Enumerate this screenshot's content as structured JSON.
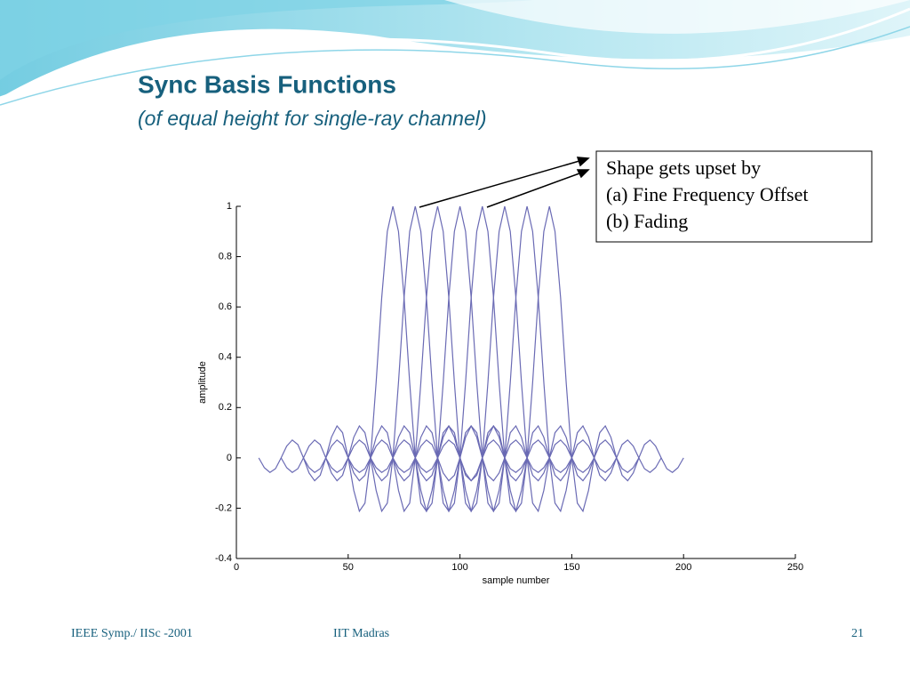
{
  "slide": {
    "title": "Sync Basis Functions",
    "subtitle": "(of equal height for single-ray channel)",
    "callout": [
      "Shape gets upset by",
      "(a) Fine Frequency Offset",
      "(b) Fading"
    ],
    "footer": {
      "left": "IEEE Symp./ IISc -2001",
      "center": "IIT Madras",
      "page": "21"
    }
  },
  "chart_data": {
    "type": "line",
    "xlabel": "sample number",
    "ylabel": "amplitude",
    "xlim": [
      0,
      250
    ],
    "xticks": [
      0,
      50,
      100,
      150,
      200,
      250
    ],
    "ylim": [
      -0.4,
      1
    ],
    "yticks": [
      -0.4,
      -0.2,
      0,
      0.2,
      0.4,
      0.6,
      0.8,
      1
    ],
    "x": [
      10,
      12.5,
      15,
      17.5,
      20,
      22.5,
      25,
      27.5,
      30,
      32.5,
      35,
      37.5,
      40,
      42.5,
      45,
      47.5,
      50,
      52.5,
      55,
      57.5,
      60,
      62.5,
      65,
      67.5,
      70,
      72.5,
      75,
      77.5,
      80,
      82.5,
      85,
      87.5,
      90,
      92.5,
      95,
      97.5,
      100,
      102.5,
      105,
      107.5,
      110,
      112.5,
      115,
      117.5,
      120,
      122.5,
      125,
      127.5,
      130,
      132.5,
      135,
      137.5,
      140,
      142.5,
      145,
      147.5,
      150,
      152.5,
      155,
      157.5,
      160,
      162.5,
      165,
      167.5,
      170,
      172.5,
      175,
      177.5,
      180,
      182.5,
      185,
      187.5,
      190,
      192.5,
      195,
      197.5,
      200
    ],
    "series": [
      {
        "color": "#6a6ab4",
        "values": [
          0,
          -0.039,
          -0.058,
          -0.043,
          0,
          0.047,
          0.071,
          0.053,
          0,
          -0.06,
          -0.091,
          -0.069,
          0,
          0.082,
          0.127,
          0.1,
          0,
          -0.129,
          -0.212,
          -0.18,
          0,
          0.3,
          0.637,
          0.9,
          1,
          0.9,
          0.637,
          0.3,
          0,
          -0.18,
          -0.212,
          -0.129,
          0,
          0.1,
          0.127,
          0.082,
          0,
          -0.069,
          -0.091,
          -0.06,
          0,
          0.053,
          0.071,
          0.047,
          0,
          -0.043,
          -0.058,
          -0.039,
          0,
          null,
          null,
          null,
          null,
          null,
          null,
          null,
          null,
          null,
          null,
          null,
          null,
          null,
          null,
          null,
          null,
          null,
          null,
          null,
          null,
          null,
          null,
          null,
          null,
          null,
          null,
          null,
          null
        ]
      },
      {
        "color": "#6a6ab4",
        "values": [
          null,
          null,
          null,
          null,
          0,
          -0.039,
          -0.058,
          -0.043,
          0,
          0.047,
          0.071,
          0.053,
          0,
          -0.06,
          -0.091,
          -0.069,
          0,
          0.082,
          0.127,
          0.1,
          0,
          -0.129,
          -0.212,
          -0.18,
          0,
          0.3,
          0.637,
          0.9,
          1,
          0.9,
          0.637,
          0.3,
          0,
          -0.18,
          -0.212,
          -0.129,
          0,
          0.1,
          0.127,
          0.082,
          0,
          -0.069,
          -0.091,
          -0.06,
          0,
          0.053,
          0.071,
          0.047,
          0,
          -0.043,
          -0.058,
          -0.039,
          0,
          null,
          null,
          null,
          null,
          null,
          null,
          null,
          null,
          null,
          null,
          null,
          null,
          null,
          null,
          null,
          null,
          null,
          null,
          null,
          null,
          null,
          null,
          null,
          null
        ]
      },
      {
        "color": "#6a6ab4",
        "values": [
          null,
          null,
          null,
          null,
          null,
          null,
          null,
          null,
          0,
          -0.039,
          -0.058,
          -0.043,
          0,
          0.047,
          0.071,
          0.053,
          0,
          -0.06,
          -0.091,
          -0.069,
          0,
          0.082,
          0.127,
          0.1,
          0,
          -0.129,
          -0.212,
          -0.18,
          0,
          0.3,
          0.637,
          0.9,
          1,
          0.9,
          0.637,
          0.3,
          0,
          -0.18,
          -0.212,
          -0.129,
          0,
          0.1,
          0.127,
          0.082,
          0,
          -0.069,
          -0.091,
          -0.06,
          0,
          0.053,
          0.071,
          0.047,
          0,
          -0.043,
          -0.058,
          -0.039,
          0,
          null,
          null,
          null,
          null,
          null,
          null,
          null,
          null,
          null,
          null,
          null,
          null,
          null,
          null,
          null,
          null,
          null,
          null,
          null,
          null
        ]
      },
      {
        "color": "#6a6ab4",
        "values": [
          null,
          null,
          null,
          null,
          null,
          null,
          null,
          null,
          null,
          null,
          null,
          null,
          0,
          -0.039,
          -0.058,
          -0.043,
          0,
          0.047,
          0.071,
          0.053,
          0,
          -0.06,
          -0.091,
          -0.069,
          0,
          0.082,
          0.127,
          0.1,
          0,
          -0.129,
          -0.212,
          -0.18,
          0,
          0.3,
          0.637,
          0.9,
          1,
          0.9,
          0.637,
          0.3,
          0,
          -0.18,
          -0.212,
          -0.129,
          0,
          0.1,
          0.127,
          0.082,
          0,
          -0.069,
          -0.091,
          -0.06,
          0,
          0.053,
          0.071,
          0.047,
          0,
          -0.043,
          -0.058,
          -0.039,
          0,
          null,
          null,
          null,
          null,
          null,
          null,
          null,
          null,
          null,
          null,
          null,
          null,
          null,
          null,
          null,
          null
        ]
      },
      {
        "color": "#6a6ab4",
        "values": [
          null,
          null,
          null,
          null,
          null,
          null,
          null,
          null,
          null,
          null,
          null,
          null,
          null,
          null,
          null,
          null,
          0,
          -0.039,
          -0.058,
          -0.043,
          0,
          0.047,
          0.071,
          0.053,
          0,
          -0.06,
          -0.091,
          -0.069,
          0,
          0.082,
          0.127,
          0.1,
          0,
          -0.129,
          -0.212,
          -0.18,
          0,
          0.3,
          0.637,
          0.9,
          1,
          0.9,
          0.637,
          0.3,
          0,
          -0.18,
          -0.212,
          -0.129,
          0,
          0.1,
          0.127,
          0.082,
          0,
          -0.069,
          -0.091,
          -0.06,
          0,
          0.053,
          0.071,
          0.047,
          0,
          -0.043,
          -0.058,
          -0.039,
          0,
          null,
          null,
          null,
          null,
          null,
          null,
          null,
          null,
          null,
          null,
          null,
          null
        ]
      },
      {
        "color": "#6a6ab4",
        "values": [
          null,
          null,
          null,
          null,
          null,
          null,
          null,
          null,
          null,
          null,
          null,
          null,
          null,
          null,
          null,
          null,
          null,
          null,
          null,
          null,
          0,
          -0.039,
          -0.058,
          -0.043,
          0,
          0.047,
          0.071,
          0.053,
          0,
          -0.06,
          -0.091,
          -0.069,
          0,
          0.082,
          0.127,
          0.1,
          0,
          -0.129,
          -0.212,
          -0.18,
          0,
          0.3,
          0.637,
          0.9,
          1,
          0.9,
          0.637,
          0.3,
          0,
          -0.18,
          -0.212,
          -0.129,
          0,
          0.1,
          0.127,
          0.082,
          0,
          -0.069,
          -0.091,
          -0.06,
          0,
          0.053,
          0.071,
          0.047,
          0,
          -0.043,
          -0.058,
          -0.039,
          0,
          null,
          null,
          null,
          null,
          null,
          null,
          null,
          null
        ]
      },
      {
        "color": "#6a6ab4",
        "values": [
          null,
          null,
          null,
          null,
          null,
          null,
          null,
          null,
          null,
          null,
          null,
          null,
          null,
          null,
          null,
          null,
          null,
          null,
          null,
          null,
          null,
          null,
          null,
          null,
          0,
          -0.039,
          -0.058,
          -0.043,
          0,
          0.047,
          0.071,
          0.053,
          0,
          -0.06,
          -0.091,
          -0.069,
          0,
          0.082,
          0.127,
          0.1,
          0,
          -0.129,
          -0.212,
          -0.18,
          0,
          0.3,
          0.637,
          0.9,
          1,
          0.9,
          0.637,
          0.3,
          0,
          -0.18,
          -0.212,
          -0.129,
          0,
          0.1,
          0.127,
          0.082,
          0,
          -0.069,
          -0.091,
          -0.06,
          0,
          0.053,
          0.071,
          0.047,
          0,
          -0.043,
          -0.058,
          -0.039,
          0,
          null,
          null,
          null,
          null
        ]
      },
      {
        "color": "#6a6ab4",
        "values": [
          null,
          null,
          null,
          null,
          null,
          null,
          null,
          null,
          null,
          null,
          null,
          null,
          null,
          null,
          null,
          null,
          null,
          null,
          null,
          null,
          null,
          null,
          null,
          null,
          null,
          null,
          null,
          null,
          0,
          -0.039,
          -0.058,
          -0.043,
          0,
          0.047,
          0.071,
          0.053,
          0,
          -0.06,
          -0.091,
          -0.069,
          0,
          0.082,
          0.127,
          0.1,
          0,
          -0.129,
          -0.212,
          -0.18,
          0,
          0.3,
          0.637,
          0.9,
          1,
          0.9,
          0.637,
          0.3,
          0,
          -0.18,
          -0.212,
          -0.129,
          0,
          0.1,
          0.127,
          0.082,
          0,
          -0.069,
          -0.091,
          -0.06,
          0,
          0.053,
          0.071,
          0.047,
          0,
          -0.043,
          -0.058,
          -0.039,
          0
        ]
      }
    ]
  }
}
